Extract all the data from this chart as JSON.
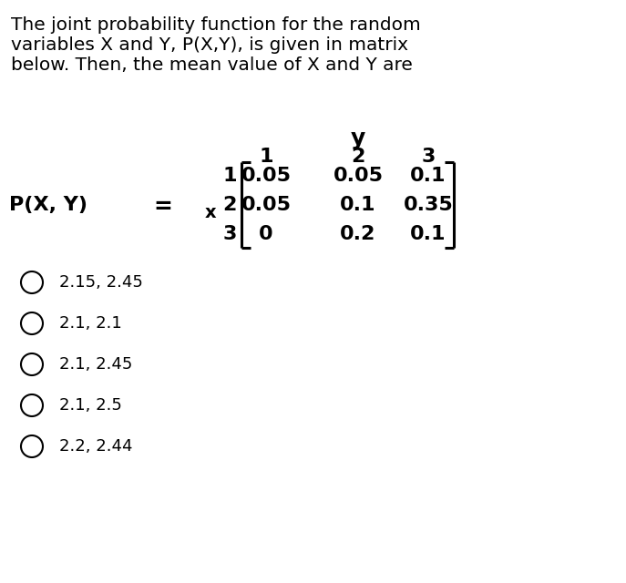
{
  "title_line1": "The joint probability function for the random",
  "title_line2": "variables X and Y, P(X,Y), is given in matrix",
  "title_line3": "below. Then, the mean value of X and Y are",
  "pxy_label": "P(X, Y)",
  "y_label": "y",
  "col_headers": [
    "1",
    "2",
    "3"
  ],
  "row_labels": [
    "1",
    "2",
    "3"
  ],
  "x_label": "x",
  "matrix": [
    [
      "0.05",
      "0.05",
      "0.1"
    ],
    [
      "0.05",
      "0.1",
      "0.35"
    ],
    [
      "0",
      "0.2",
      "0.1"
    ]
  ],
  "options": [
    "2.15, 2.45",
    "2.1, 2.1",
    "2.1, 2.45",
    "2.1, 2.5",
    "2.2, 2.44"
  ],
  "bg_color": "#ffffff",
  "text_color": "#000000",
  "font_size_title": 14.5,
  "font_size_matrix": 15,
  "font_size_options": 13
}
